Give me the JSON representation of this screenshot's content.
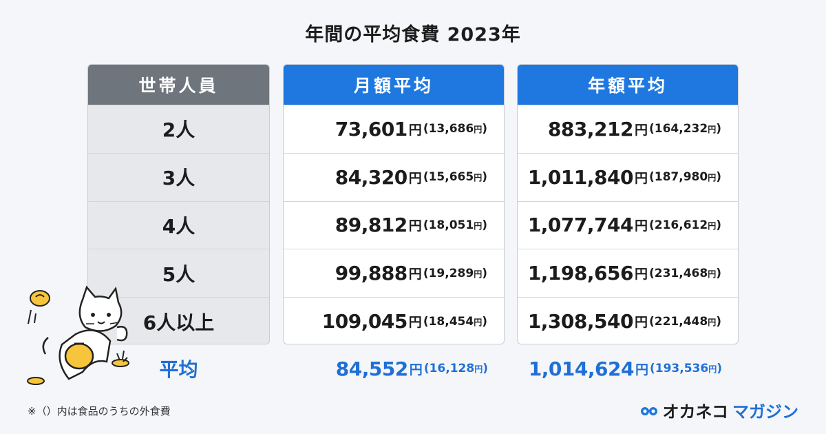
{
  "title": "年間の平均食費 2023年",
  "columns": {
    "persons": "世帯人員",
    "monthly": "月額平均",
    "annual": "年額平均"
  },
  "currency_unit": "円",
  "rows": [
    {
      "persons": "2人",
      "monthly": "73,601",
      "monthly_eatout": "13,686",
      "annual": "883,212",
      "annual_eatout": "164,232"
    },
    {
      "persons": "3人",
      "monthly": "84,320",
      "monthly_eatout": "15,665",
      "annual": "1,011,840",
      "annual_eatout": "187,980"
    },
    {
      "persons": "4人",
      "monthly": "89,812",
      "monthly_eatout": "18,051",
      "annual": "1,077,744",
      "annual_eatout": "216,612"
    },
    {
      "persons": "5人",
      "monthly": "99,888",
      "monthly_eatout": "19,289",
      "annual": "1,198,656",
      "annual_eatout": "231,468"
    },
    {
      "persons": "6人以上",
      "monthly": "109,045",
      "monthly_eatout": "18,454",
      "annual": "1,308,540",
      "annual_eatout": "221,448"
    }
  ],
  "average": {
    "label": "平均",
    "monthly": "84,552",
    "monthly_eatout": "16,128",
    "annual": "1,014,624",
    "annual_eatout": "193,536"
  },
  "note": "※（）内は食品のうちの外食費",
  "logo": {
    "part_a": "オカネコ",
    "part_b": "マガジン",
    "icon": "paw-glasses-icon"
  },
  "colors": {
    "accent_blue": "#1f78e0",
    "header_gray": "#6e757d",
    "average_text": "#1f6fd6",
    "mascot_yellow": "#f6c53b"
  }
}
